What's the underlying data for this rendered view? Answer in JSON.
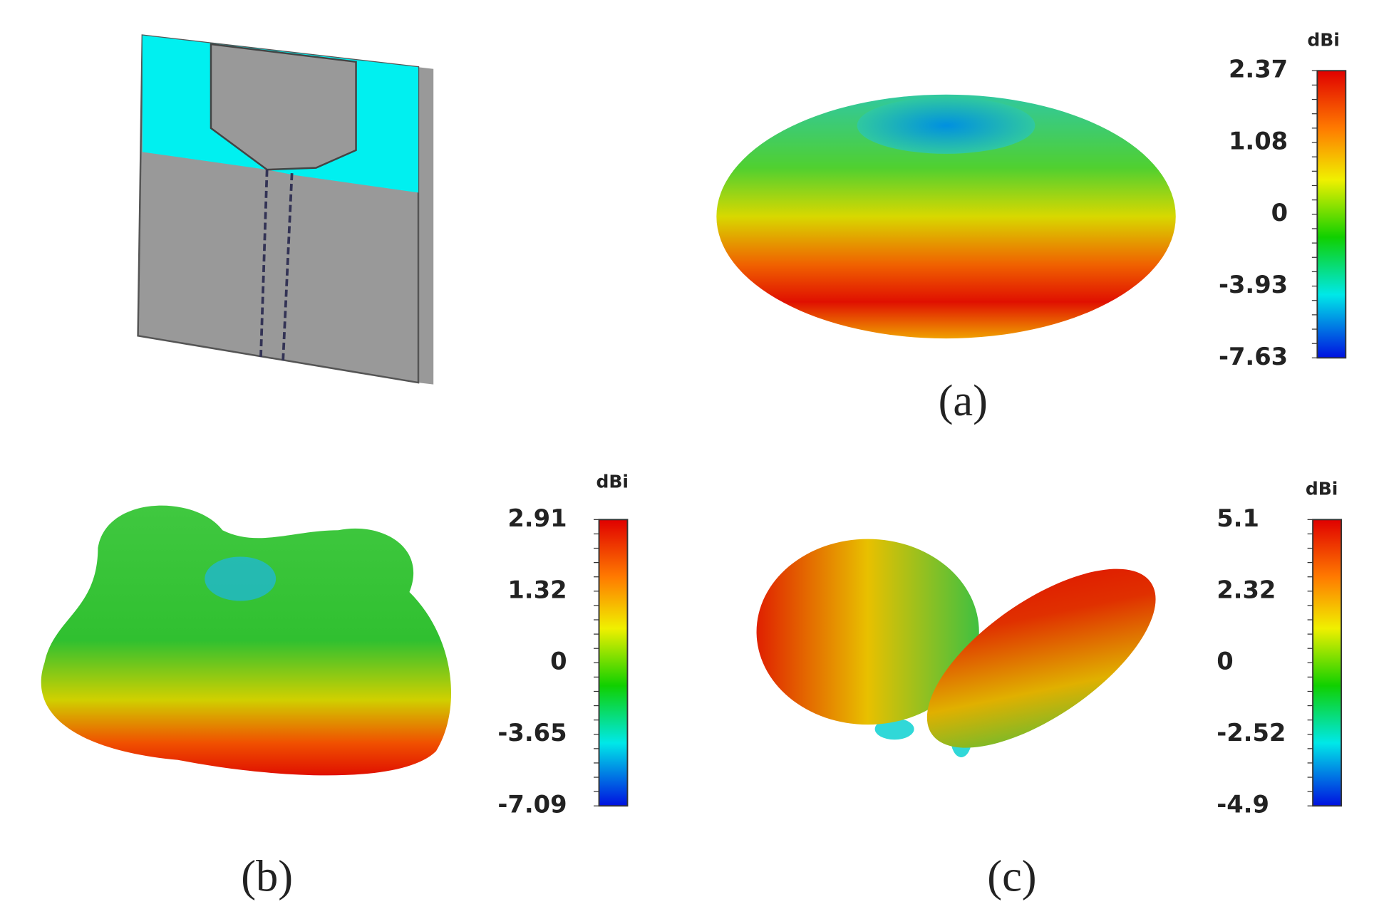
{
  "figure": {
    "panels": [
      {
        "label": "(a)",
        "unit": "dBi",
        "colorbar_ticks": [
          2.37,
          1.08,
          0,
          -3.93,
          -7.63
        ]
      },
      {
        "label": "(b)",
        "unit": "dBi",
        "colorbar_ticks": [
          2.91,
          1.32,
          0,
          -3.65,
          -7.09
        ]
      },
      {
        "label": "(c)",
        "unit": "dBi",
        "colorbar_ticks": [
          5.1,
          2.32,
          0,
          -2.52,
          -4.9
        ]
      }
    ]
  }
}
